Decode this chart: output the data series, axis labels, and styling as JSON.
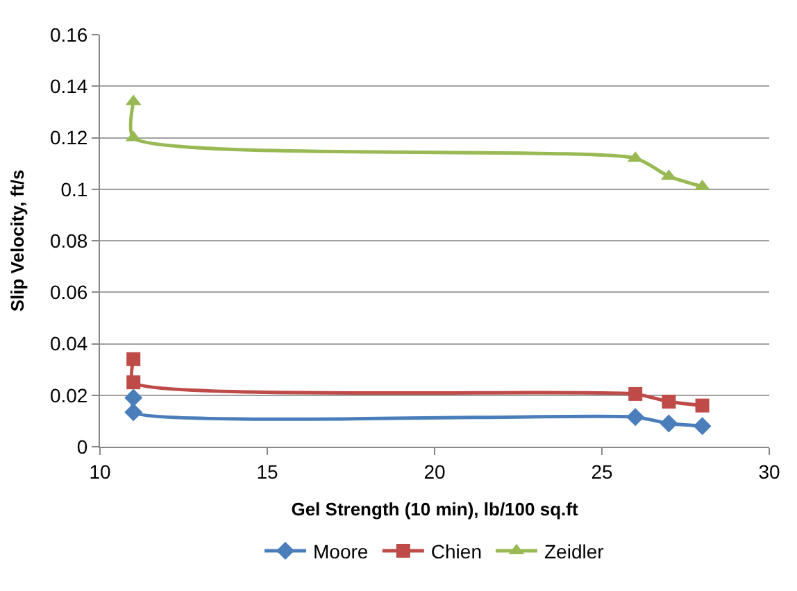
{
  "chart_data": {
    "type": "line",
    "xlabel": "Gel Strength (10 min), lb/100 sq.ft",
    "ylabel": "Slip Velocity, ft/s",
    "x": [
      11,
      11,
      26,
      27,
      28
    ],
    "series": [
      {
        "name": "Moore",
        "color": "#4a7ebb",
        "marker": "diamond",
        "values": [
          0.019,
          0.0134,
          0.0115,
          0.009,
          0.008
        ]
      },
      {
        "name": "Chien",
        "color": "#be4b48",
        "marker": "square",
        "values": [
          0.034,
          0.025,
          0.0205,
          0.0175,
          0.016
        ]
      },
      {
        "name": "Zeidler",
        "color": "#98b954",
        "marker": "triangle",
        "values": [
          0.134,
          0.12,
          0.112,
          0.105,
          0.101
        ]
      }
    ],
    "xlim": [
      10,
      30
    ],
    "xticks": [
      10,
      15,
      20,
      25,
      30
    ],
    "ylim": [
      0,
      0.16
    ],
    "yticks": [
      0,
      0.02,
      0.04,
      0.06,
      0.08,
      0.1,
      0.12,
      0.14,
      0.16
    ],
    "grid": "y",
    "legend": "bottom",
    "line_style": "solid"
  }
}
